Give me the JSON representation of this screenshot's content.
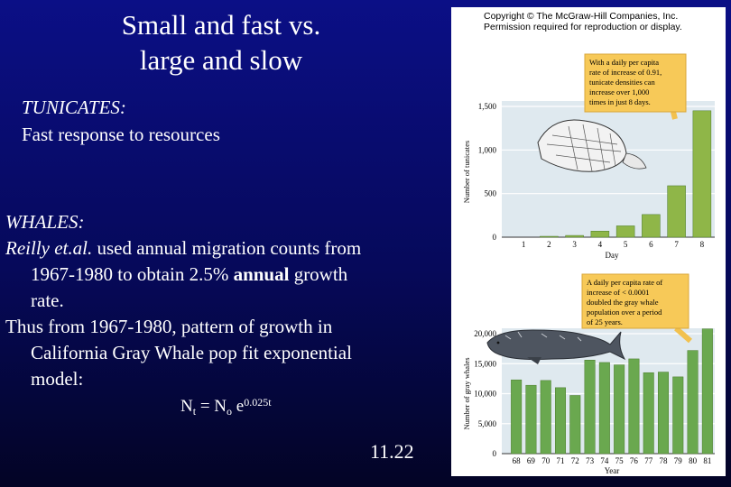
{
  "slide": {
    "title_line1": "Small and fast vs.",
    "title_line2": "large and slow",
    "tunicates_heading": "TUNICATES:",
    "tunicates_text": "Fast response to resources",
    "whales_heading": "WHALES:",
    "whales_authors": "Reilly et.al.",
    "whales_line1_rest": " used annual migration counts from",
    "whales_line2_a": "1967-1980 to obtain 2.5% ",
    "whales_line2_bold": "annual",
    "whales_line2_b": " growth",
    "whales_line3": "rate.",
    "whales_line4": "Thus from 1967-1980, pattern of growth in",
    "whales_line5": "California Gray Whale pop fit exponential",
    "whales_line6": "model:",
    "eq_n": "N",
    "eq_sub_t": "t",
    "eq_equals": " = N",
    "eq_sub_o": "o",
    "eq_e": " e",
    "eq_exp": "0.025t",
    "slide_number": "11.22"
  },
  "figure": {
    "copyright_line1": "Copyright © The McGraw-Hill Companies, Inc.",
    "copyright_line2": "Permission required for reproduction or display."
  },
  "chart_data": [
    {
      "type": "bar",
      "categories": [
        "1",
        "2",
        "3",
        "4",
        "5",
        "6",
        "7",
        "8"
      ],
      "values": [
        0,
        10,
        20,
        70,
        130,
        260,
        590,
        1450
      ],
      "xlabel": "Day",
      "ylabel": "Number of tunicates",
      "ylim": [
        0,
        1500
      ],
      "yticks": [
        0,
        500,
        1000,
        1500
      ],
      "ytick_labels": [
        "0",
        "500",
        "1,000",
        "1,500"
      ],
      "grid": true,
      "bar_color": "#8fb648",
      "annotation_lines": [
        "With a daily per capita",
        "rate of increase of 0.91,",
        "tunicate densities can",
        "increase over 1,000",
        "times in just 8 days."
      ]
    },
    {
      "type": "bar",
      "categories": [
        "68",
        "69",
        "70",
        "71",
        "72",
        "73",
        "74",
        "75",
        "76",
        "77",
        "78",
        "79",
        "80",
        "81"
      ],
      "values": [
        12300,
        11400,
        12200,
        11000,
        9700,
        15600,
        15200,
        14800,
        15800,
        13500,
        13600,
        12800,
        17200,
        20800
      ],
      "xlabel": "Year",
      "ylabel": "Number of gray whales",
      "ylim": [
        0,
        20000
      ],
      "yticks": [
        0,
        5000,
        10000,
        15000,
        20000
      ],
      "ytick_labels": [
        "0",
        "5,000",
        "10,000",
        "15,000",
        "20,000"
      ],
      "grid": true,
      "bar_color": "#6aa84f",
      "annotation_lines": [
        "A daily per capita rate of",
        "increase of < 0.0001",
        "doubled the gray whale",
        "population over a period",
        "of 25 years."
      ]
    }
  ]
}
